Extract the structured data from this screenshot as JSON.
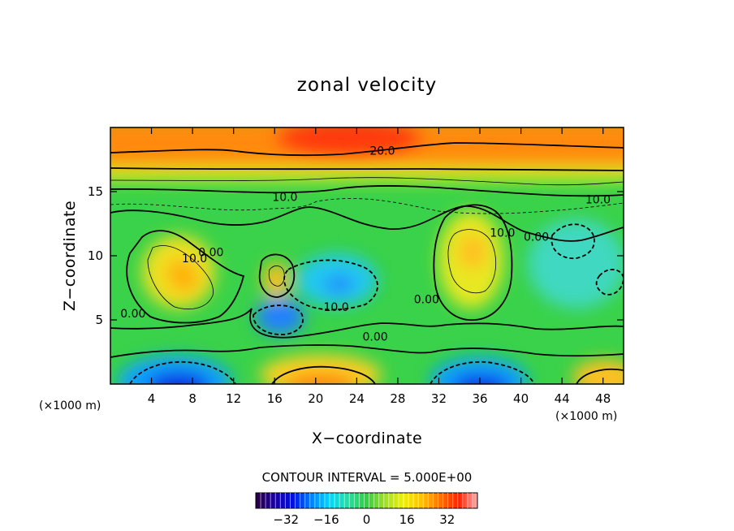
{
  "chart_data": {
    "type": "heatmap",
    "title": "zonal velocity",
    "xlabel": "X−coordinate",
    "ylabel": "Z−coordinate",
    "x_unit_left": "(×1000 m)",
    "x_unit_right": "(×1000 m)",
    "xlim": [
      0,
      50
    ],
    "ylim": [
      0,
      20
    ],
    "x_ticks": [
      4,
      8,
      12,
      16,
      20,
      24,
      28,
      32,
      36,
      40,
      44,
      48
    ],
    "y_ticks": [
      5,
      10,
      15
    ],
    "contour_interval_text": "CONTOUR INTERVAL = 5.000E+00",
    "colorbar": {
      "range": [
        -44,
        44
      ],
      "ticks": [
        "−32",
        "−16",
        "0",
        "16",
        "32"
      ],
      "tick_values": [
        -32,
        -16,
        0,
        16,
        32
      ],
      "colors": [
        "#2b0040",
        "#1a00a0",
        "#0010e0",
        "#0080ff",
        "#00d8ff",
        "#20e0a0",
        "#30d040",
        "#a0e020",
        "#f0f000",
        "#ffc000",
        "#ff7000",
        "#ff2000",
        "#ffb0b0"
      ]
    },
    "contour_labels": [
      {
        "text": "20.0",
        "x": 26.5,
        "y": 18.2
      },
      {
        "text": "10.0",
        "x": 17.0,
        "y": 14.6
      },
      {
        "text": "10.0",
        "x": 47.5,
        "y": 14.4
      },
      {
        "text": "10.0",
        "x": 38.2,
        "y": 11.8
      },
      {
        "text": "0.00",
        "x": 41.5,
        "y": 11.5
      },
      {
        "text": "10.0",
        "x": 8.2,
        "y": 9.8
      },
      {
        "text": "0.00",
        "x": 9.8,
        "y": 10.3
      },
      {
        "text": "0.00",
        "x": 2.2,
        "y": 5.5
      },
      {
        "text": "10.0",
        "x": 22.0,
        "y": 6.0
      },
      {
        "text": "0.00",
        "x": 30.8,
        "y": 6.6
      },
      {
        "text": "0.00",
        "x": 25.8,
        "y": 3.7
      }
    ],
    "grid": false,
    "legend": "colorbar bottom"
  }
}
